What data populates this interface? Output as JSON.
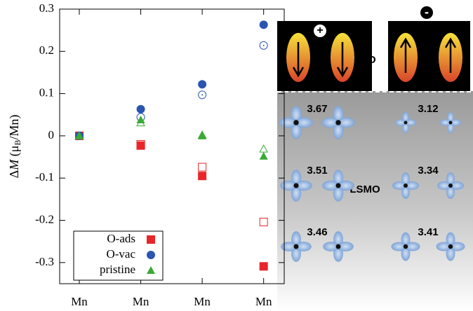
{
  "chart_data": {
    "type": "scatter",
    "ylabel": [
      "Δ",
      "M",
      " (μ",
      "B",
      "/Mn)"
    ],
    "categories": [
      "Mn",
      "Mn",
      "Mn",
      "Mn"
    ],
    "ylim": [
      -0.35,
      0.3
    ],
    "yticks": [
      -0.3,
      -0.2,
      -0.1,
      0,
      0.1,
      0.2,
      0.3
    ],
    "series": [
      {
        "name": "O-ads",
        "color": "#e8262a",
        "marker": "square",
        "values": [
          0,
          -0.023,
          -0.095,
          -0.309
        ],
        "open_values": [
          0,
          -0.02,
          -0.074,
          -0.204
        ]
      },
      {
        "name": "O-vac",
        "color": "#2a55b0",
        "marker": "circle",
        "values": [
          0,
          0.063,
          0.122,
          0.263
        ],
        "open_values": [
          0,
          0.044,
          0.097,
          0.214
        ]
      },
      {
        "name": "pristine",
        "color": "#3aaa35",
        "marker": "triangle",
        "values": [
          0,
          0.038,
          0,
          -0.048
        ],
        "open_values": [
          0,
          0.031,
          0.002,
          -0.031
        ]
      }
    ],
    "legend": "lower left"
  },
  "diagram": {
    "top_layer": "BTO",
    "bottom_layer": "LSMO",
    "left_sign": "+",
    "right_sign": "-",
    "left_moments": [
      3.67,
      3.51,
      3.46
    ],
    "right_moments": [
      3.12,
      3.34,
      3.41
    ]
  }
}
